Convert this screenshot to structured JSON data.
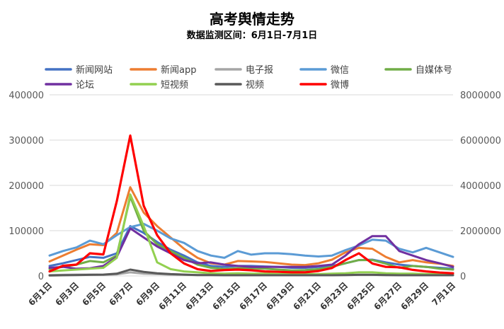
{
  "chart_data": {
    "type": "line",
    "title": "高考舆情走势",
    "subtitle": "数据监测区间：6月1日-7月1日",
    "x": [
      "6月1日",
      "6月2日",
      "6月3日",
      "6月4日",
      "6月5日",
      "6月6日",
      "6月7日",
      "6月8日",
      "6月9日",
      "6月10日",
      "6月11日",
      "6月12日",
      "6月13日",
      "6月14日",
      "6月15日",
      "6月16日",
      "6月17日",
      "6月18日",
      "6月19日",
      "6月20日",
      "6月21日",
      "6月22日",
      "6月23日",
      "6月24日",
      "6月25日",
      "6月26日",
      "6月27日",
      "6月28日",
      "6月29日",
      "6月30日",
      "7月1日"
    ],
    "x_tick_labels": [
      "6月1日",
      "6月3日",
      "6月5日",
      "6月7日",
      "6月9日",
      "6月11日",
      "6月13日",
      "6月15日",
      "6月17日",
      "6月19日",
      "6月21日",
      "6月23日",
      "6月25日",
      "6月27日",
      "6月29日",
      "7月1日"
    ],
    "y_left": {
      "ylim": [
        0,
        400000
      ],
      "ticks": [
        "0",
        "100000",
        "200000",
        "300000",
        "400000"
      ]
    },
    "y_right": {
      "ylim": [
        0,
        8000000
      ],
      "ticks": [
        "0",
        "2000000",
        "4000000",
        "6000000",
        "8000000"
      ]
    },
    "legend_position": "top",
    "series": [
      {
        "name": "新闻网站",
        "color": "#4472c4",
        "axis": "left",
        "values": [
          22000,
          28000,
          35000,
          42000,
          40000,
          50000,
          110000,
          95000,
          75000,
          58000,
          45000,
          30000,
          22000,
          20000,
          22000,
          22000,
          21000,
          20000,
          18000,
          18000,
          20000,
          22000,
          28000,
          35000,
          36000,
          30000,
          25000,
          22000,
          20000,
          18000,
          16000
        ]
      },
      {
        "name": "新闻app",
        "color": "#ed7d31",
        "axis": "left",
        "values": [
          32000,
          45000,
          58000,
          70000,
          68000,
          95000,
          196000,
          140000,
          110000,
          85000,
          60000,
          40000,
          28000,
          25000,
          33000,
          32000,
          31000,
          28000,
          25000,
          24000,
          28000,
          36000,
          52000,
          62000,
          60000,
          42000,
          30000,
          35000,
          30000,
          27000,
          22000
        ]
      },
      {
        "name": "电子报",
        "color": "#a5a5a5",
        "axis": "left",
        "values": [
          2000,
          2500,
          3000,
          3000,
          2500,
          3500,
          8000,
          5000,
          4000,
          3000,
          2500,
          2000,
          2000,
          2000,
          2000,
          2000,
          2000,
          2000,
          2000,
          2000,
          2000,
          2000,
          2000,
          2500,
          2500,
          2000,
          2000,
          2000,
          2000,
          2000,
          2000
        ]
      },
      {
        "name": "微信",
        "color": "#5b9bd5",
        "axis": "left",
        "values": [
          45000,
          55000,
          63000,
          78000,
          70000,
          90000,
          108000,
          115000,
          100000,
          83000,
          73000,
          55000,
          45000,
          40000,
          55000,
          47000,
          50000,
          50000,
          48000,
          45000,
          43000,
          45000,
          57000,
          67000,
          80000,
          78000,
          60000,
          52000,
          62000,
          52000,
          42000
        ]
      },
      {
        "name": "自媒体号",
        "color": "#70ad47",
        "axis": "left",
        "values": [
          15000,
          20000,
          25000,
          33000,
          30000,
          45000,
          175000,
          100000,
          70000,
          55000,
          40000,
          25000,
          18000,
          15000,
          17000,
          17000,
          16000,
          14000,
          12000,
          13000,
          15000,
          20000,
          28000,
          35000,
          35000,
          27000,
          18000,
          22000,
          20000,
          16000,
          14000
        ]
      },
      {
        "name": "论坛",
        "color": "#7030a0",
        "axis": "left",
        "values": [
          18000,
          20000,
          16000,
          17000,
          22000,
          42000,
          105000,
          85000,
          65000,
          50000,
          35000,
          28000,
          30000,
          25000,
          22000,
          20000,
          20000,
          20000,
          20000,
          20000,
          22000,
          25000,
          45000,
          70000,
          88000,
          88000,
          55000,
          45000,
          35000,
          28000,
          20000
        ]
      },
      {
        "name": "短视频",
        "color": "#92d050",
        "axis": "left",
        "values": [
          10000,
          12000,
          14000,
          16000,
          18000,
          40000,
          180000,
          110000,
          30000,
          15000,
          10000,
          8000,
          6000,
          5000,
          6000,
          5000,
          5000,
          4000,
          4000,
          4000,
          4000,
          5000,
          6000,
          8000,
          8000,
          6000,
          5000,
          5000,
          4000,
          4000,
          3000
        ]
      },
      {
        "name": "视频",
        "color": "#595959",
        "axis": "left",
        "values": [
          1000,
          1500,
          2000,
          2500,
          3000,
          5000,
          14000,
          9000,
          6000,
          4000,
          3000,
          2000,
          2000,
          1500,
          1500,
          1500,
          1500,
          1500,
          1500,
          1500,
          1500,
          1500,
          2000,
          2500,
          2500,
          2000,
          1500,
          1500,
          1500,
          1500,
          1500
        ]
      },
      {
        "name": "微博",
        "color": "#ff0000",
        "axis": "right",
        "values": [
          200000,
          450000,
          500000,
          1000000,
          950000,
          3300000,
          6200000,
          3100000,
          1800000,
          1000000,
          550000,
          300000,
          220000,
          260000,
          280000,
          250000,
          200000,
          180000,
          160000,
          160000,
          220000,
          350000,
          700000,
          1000000,
          550000,
          400000,
          380000,
          270000,
          200000,
          150000,
          120000
        ]
      }
    ]
  }
}
